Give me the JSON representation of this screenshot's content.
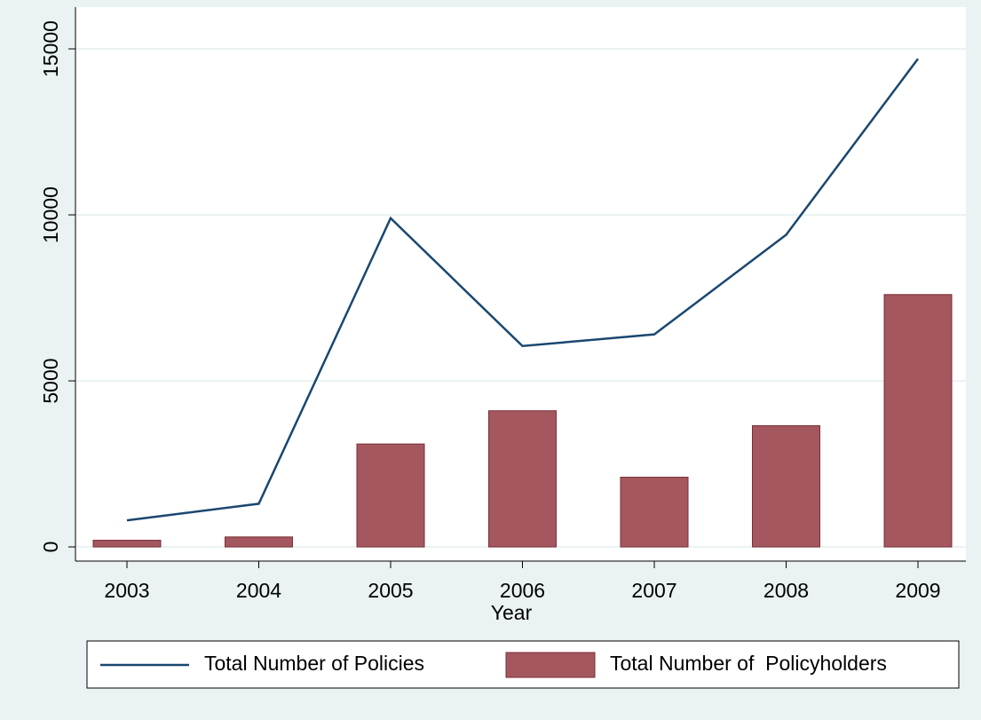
{
  "chart_data": {
    "type": "combo",
    "x_label": "Year",
    "categories": [
      "2003",
      "2004",
      "2005",
      "2006",
      "2007",
      "2008",
      "2009"
    ],
    "series": [
      {
        "name": "Total Number of Policies",
        "type": "line",
        "color": "#1a476f",
        "values": [
          800,
          1300,
          9900,
          6050,
          6400,
          9400,
          14700
        ]
      },
      {
        "name": "Total Number of  Policyholders",
        "type": "bar",
        "color": "#a4575e",
        "values": [
          200,
          300,
          3100,
          4100,
          2100,
          3650,
          7600
        ]
      }
    ],
    "ylim": [
      -400,
      16300
    ],
    "yticks": [
      0,
      5000,
      10000,
      15000
    ],
    "grid": true,
    "legend": "bottom"
  }
}
